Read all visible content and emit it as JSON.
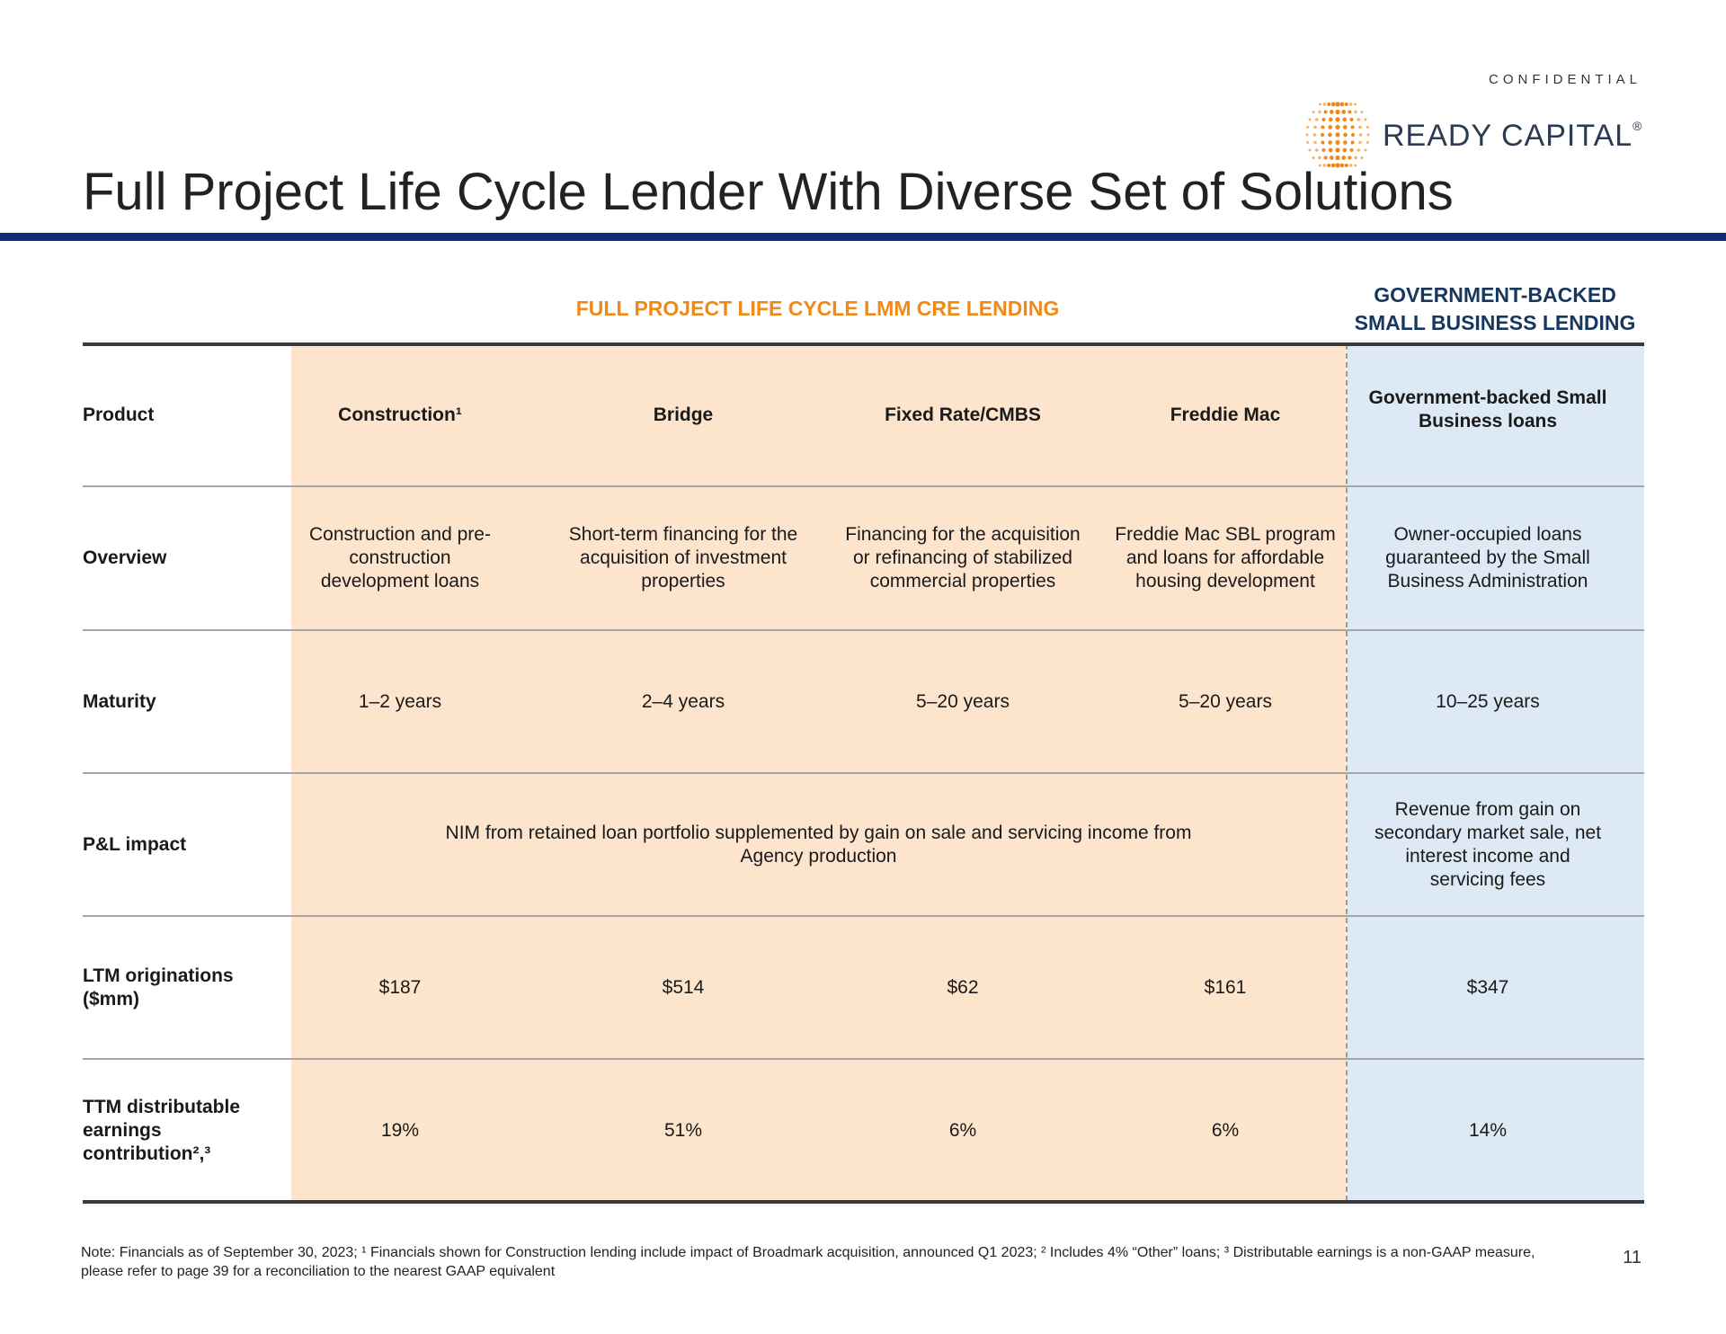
{
  "header": {
    "confidential": "CONFIDENTIAL",
    "logo_text": "READY CAPITAL",
    "logo_registered": "®",
    "title": "Full Project Life Cycle Lender With Diverse Set of Solutions"
  },
  "colors": {
    "navy_rule": "#0f2c74",
    "cre_accent": "#ef8a17",
    "cre_fill": "#fde4cd",
    "gov_accent": "#17375e",
    "gov_fill": "#dee9f6"
  },
  "groups": {
    "cre": "FULL PROJECT LIFE CYCLE LMM CRE LENDING",
    "gov_line1": "GOVERNMENT-BACKED",
    "gov_line2": "SMALL BUSINESS LENDING"
  },
  "table": {
    "product": {
      "label": "Product",
      "values": [
        "Construction¹",
        "Bridge",
        "Fixed Rate/CMBS",
        "Freddie Mac",
        "Government-backed Small Business loans"
      ]
    },
    "overview": {
      "label": "Overview",
      "values": [
        "Construction and pre-construction development loans",
        "Short-term financing for the acquisition of investment properties",
        "Financing for the acquisition or refinancing of stabilized commercial properties",
        "Freddie Mac SBL program and loans for affordable housing development",
        "Owner-occupied loans guaranteed by the Small Business Administration"
      ]
    },
    "maturity": {
      "label": "Maturity",
      "values": [
        "1–2 years",
        "2–4 years",
        "5–20 years",
        "5–20 years",
        "10–25 years"
      ]
    },
    "pl_impact": {
      "label": "P&L impact",
      "cre": "NIM from retained loan portfolio supplemented by gain on sale and servicing income from Agency production",
      "gov": "Revenue from gain on secondary market sale, net interest income and servicing fees"
    },
    "ltm": {
      "label": "LTM originations ($mm)",
      "values": [
        "$187",
        "$514",
        "$62",
        "$161",
        "$347"
      ]
    },
    "ttm": {
      "label": "TTM distributable earnings contribution²,³",
      "values": [
        "19%",
        "51%",
        "6%",
        "6%",
        "14%"
      ]
    }
  },
  "footer": {
    "note": "Note: Financials as of September 30, 2023; ¹ Financials shown for Construction lending include impact of Broadmark acquisition, announced Q1 2023; ² Includes 4% “Other” loans; ³ Distributable earnings is a non-GAAP measure, please refer to page 39 for a reconciliation to the nearest GAAP equivalent",
    "page_number": "11"
  }
}
